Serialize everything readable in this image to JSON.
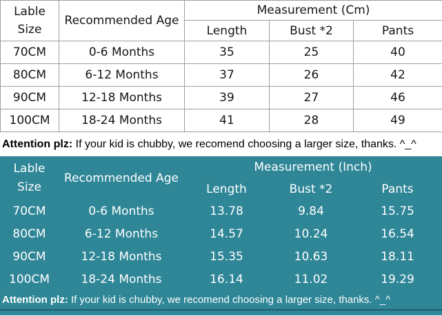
{
  "colors": {
    "teal_background": "#2e8697",
    "table_border": "#9e9e9e",
    "cm_text": "#000000",
    "inch_text": "#ffffff"
  },
  "chart_data": [
    {
      "type": "table",
      "title": "Measurement (Cm)",
      "header": {
        "label_line1": "Lable",
        "label_line2": "Size",
        "age": "Recommended Age",
        "length": "Length",
        "bust": "Bust *2",
        "pants": "Pants"
      },
      "rows": [
        {
          "size": "70CM",
          "age": "0-6 Months",
          "length": 35,
          "bust": 25,
          "pants": 40
        },
        {
          "size": "80CM",
          "age": "6-12 Months",
          "length": 37,
          "bust": 26,
          "pants": 42
        },
        {
          "size": "90CM",
          "age": "12-18 Months",
          "length": 39,
          "bust": 27,
          "pants": 46
        },
        {
          "size": "100CM",
          "age": "18-24 Months",
          "length": 41,
          "bust": 28,
          "pants": 49
        }
      ],
      "note": {
        "lead": "Attention plz:",
        "body": " If your kid is chubby, we recomend choosing a larger size, thanks. ^_^"
      }
    },
    {
      "type": "table",
      "title": "Measurement (Inch)",
      "header": {
        "label_line1": "Lable",
        "label_line2": "Size",
        "age": "Recommended Age",
        "length": "Length",
        "bust": "Bust *2",
        "pants": "Pants"
      },
      "rows": [
        {
          "size": "70CM",
          "age": "0-6 Months",
          "length": 13.78,
          "bust": 9.84,
          "pants": 15.75
        },
        {
          "size": "80CM",
          "age": "6-12 Months",
          "length": 14.57,
          "bust": 10.24,
          "pants": 16.54
        },
        {
          "size": "90CM",
          "age": "12-18 Months",
          "length": 15.35,
          "bust": 10.63,
          "pants": 18.11
        },
        {
          "size": "100CM",
          "age": "18-24 Months",
          "length": 16.14,
          "bust": 11.02,
          "pants": 19.29
        }
      ],
      "note": {
        "lead": "Attention plz:",
        "body": " If your kid is chubby, we recomend choosing a larger size, thanks. ^_^"
      }
    }
  ]
}
